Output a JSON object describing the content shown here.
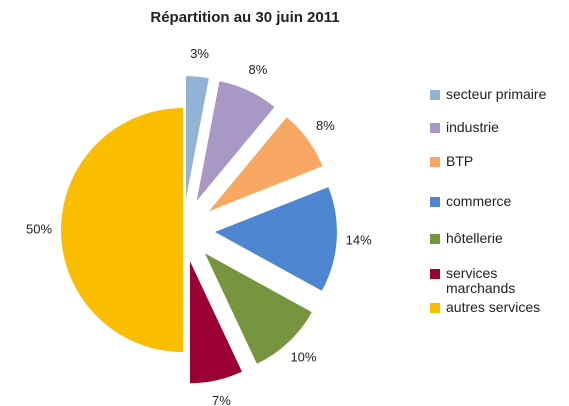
{
  "chart_data": {
    "type": "pie",
    "title": "Répartition au 30 juin 2011",
    "categories": [
      "secteur primaire",
      "industrie",
      "BTP",
      "commerce",
      "hôtellerie",
      "services marchands",
      "autres services"
    ],
    "values": [
      3,
      8,
      8,
      14,
      10,
      7,
      50
    ],
    "value_labels": [
      "3%",
      "8%",
      "8%",
      "14%",
      "10%",
      "7%",
      "50%"
    ],
    "colors": [
      "#93b3d6",
      "#a898c6",
      "#f9a864",
      "#4f86d2",
      "#77953e",
      "#9b0035",
      "#fbbd00"
    ],
    "legend": "right"
  }
}
